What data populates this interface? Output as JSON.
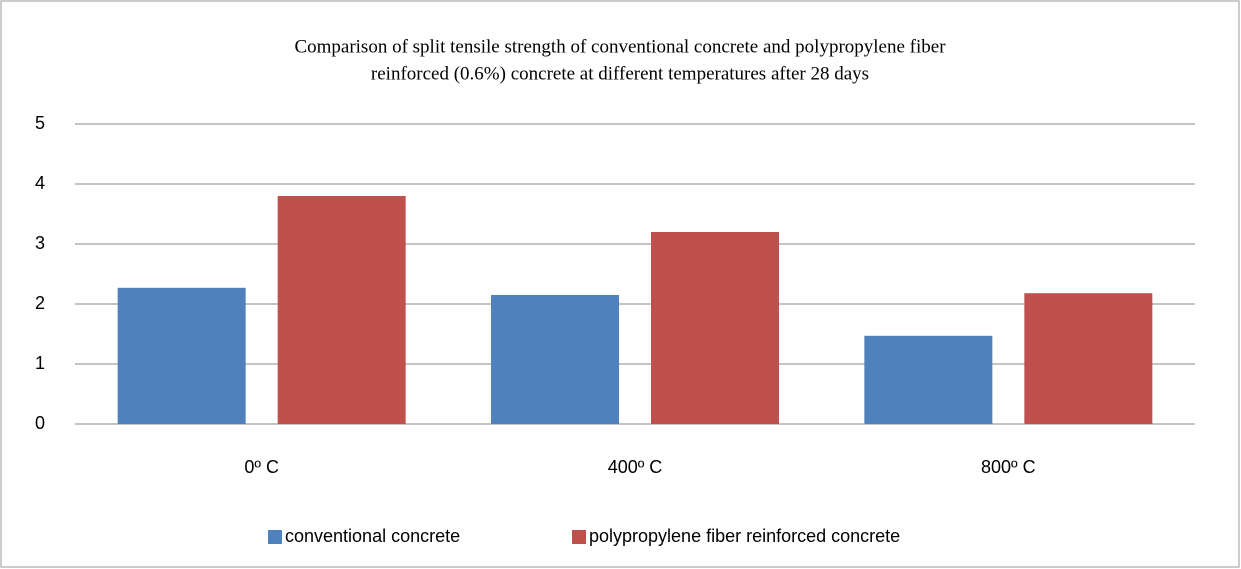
{
  "chart_data": {
    "type": "bar",
    "title": [
      "Comparison of split tensile strength of conventional concrete and polypropylene fiber",
      "reinforced (0.6%) concrete at different temperatures after 28 days"
    ],
    "categories": [
      "0º C",
      "400º C",
      "800º C"
    ],
    "series": [
      {
        "name": "conventional concrete",
        "color": "#4f81bd",
        "values": [
          2.27,
          2.15,
          1.47
        ]
      },
      {
        "name": "polypropylene fiber reinforced concrete",
        "color": "#c0504d",
        "values": [
          3.8,
          3.2,
          2.18
        ]
      }
    ],
    "ylim": [
      0,
      5
    ],
    "yticks": [
      0,
      1,
      2,
      3,
      4,
      5
    ],
    "grid": true,
    "legend": "bottom"
  }
}
